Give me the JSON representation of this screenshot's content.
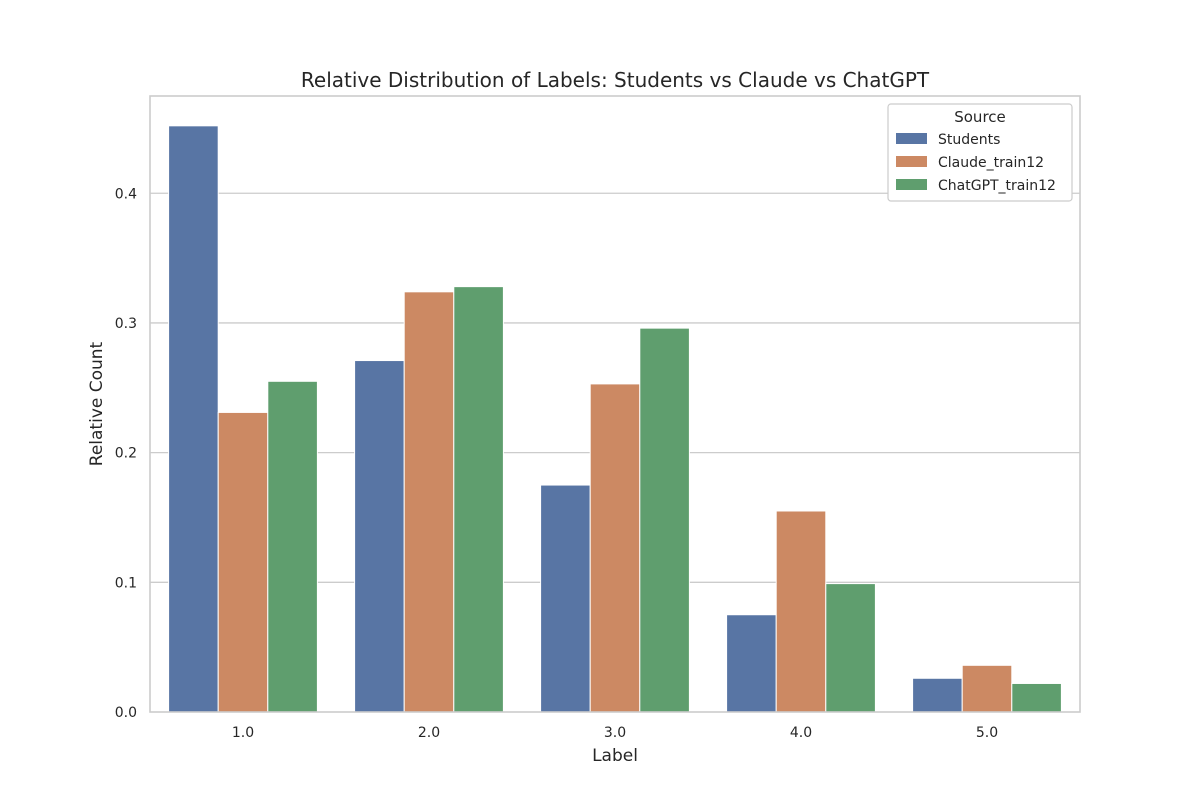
{
  "chart_data": {
    "type": "bar",
    "title": "Relative Distribution of Labels: Students vs Claude vs ChatGPT",
    "xlabel": "Label",
    "ylabel": "Relative Count",
    "categories": [
      "1.0",
      "2.0",
      "3.0",
      "4.0",
      "5.0"
    ],
    "series": [
      {
        "name": "Students",
        "color": "#5875a4",
        "values": [
          0.452,
          0.271,
          0.175,
          0.075,
          0.026
        ]
      },
      {
        "name": "Claude_train12",
        "color": "#cc8963",
        "values": [
          0.231,
          0.324,
          0.253,
          0.155,
          0.036
        ]
      },
      {
        "name": "ChatGPT_train12",
        "color": "#5f9e6e",
        "values": [
          0.255,
          0.328,
          0.296,
          0.099,
          0.022
        ]
      }
    ],
    "ylim": [
      0,
      0.475
    ],
    "yticks": [
      0.0,
      0.1,
      0.2,
      0.3,
      0.4
    ],
    "ytick_labels": [
      "0.0",
      "0.1",
      "0.2",
      "0.3",
      "0.4"
    ],
    "grid": "horizontal",
    "legend": {
      "title": "Source",
      "placement": "top-right"
    }
  }
}
